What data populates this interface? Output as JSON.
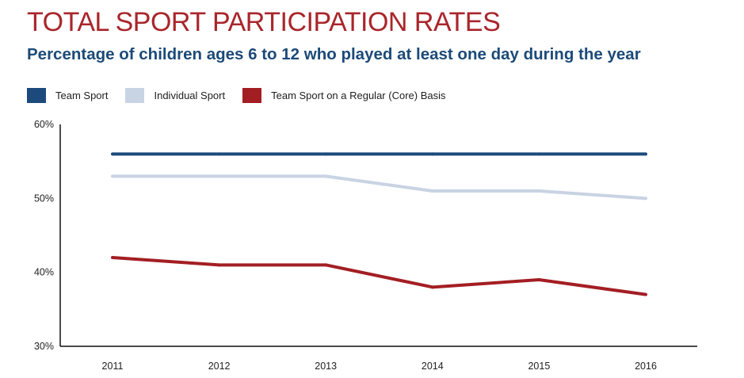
{
  "header": {
    "title": "TOTAL SPORT PARTICIPATION RATES",
    "subtitle": "Percentage of children ages 6 to 12 who played at least one day during the year"
  },
  "colors": {
    "title": "#a9262b",
    "subtitle": "#1c4a78",
    "axis": "#111111"
  },
  "chart_data": {
    "type": "line",
    "title": "TOTAL SPORT PARTICIPATION RATES",
    "subtitle": "Percentage of children ages 6 to 12 who played at least one day during the year",
    "xlabel": "",
    "ylabel": "",
    "x": [
      "2011",
      "2012",
      "2013",
      "2014",
      "2015",
      "2016"
    ],
    "ylim": [
      30,
      60
    ],
    "yticks": [
      30,
      40,
      50,
      60
    ],
    "ytick_labels": [
      "30%",
      "40%",
      "50%",
      "60%"
    ],
    "grid": false,
    "legend_position": "top-left",
    "series": [
      {
        "name": "Team Sport",
        "color": "#1c4a7c",
        "values": [
          56,
          56,
          56,
          56,
          56,
          56
        ]
      },
      {
        "name": "Individual Sport",
        "color": "#c8d3e3",
        "values": [
          53,
          53,
          53,
          51,
          51,
          50
        ]
      },
      {
        "name": "Team Sport on a Regular (Core) Basis",
        "color": "#a31e23",
        "values": [
          42,
          41,
          41,
          38,
          39,
          37
        ]
      }
    ]
  }
}
